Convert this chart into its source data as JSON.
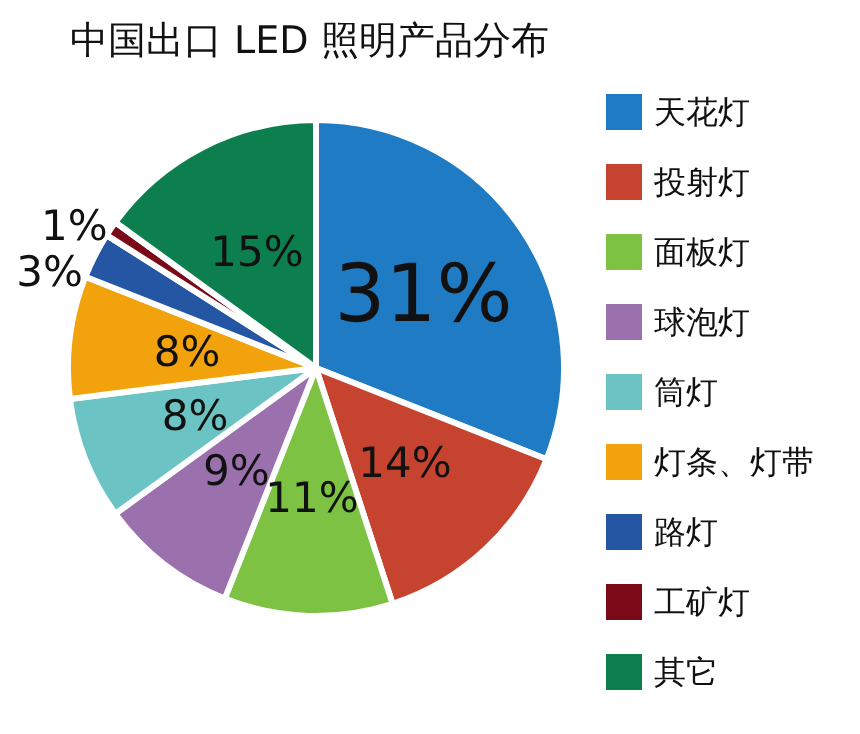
{
  "chart_data": {
    "type": "pie",
    "title": "中国出口 LED 照明产品分布",
    "categories": [
      "天花灯",
      "投射灯",
      "面板灯",
      "球泡灯",
      "筒灯",
      "灯条、灯带",
      "路灯",
      "工矿灯",
      "其它"
    ],
    "values": [
      31,
      14,
      11,
      9,
      8,
      8,
      3,
      1,
      15
    ],
    "value_labels": [
      "31%",
      "14%",
      "11%",
      "9%",
      "8%",
      "8%",
      "3%",
      "1%",
      "15%"
    ],
    "colors": [
      "#1f7bc4",
      "#c5432f",
      "#7dc242",
      "#9a70ad",
      "#6cc3c3",
      "#f2a20c",
      "#2456a4",
      "#7a0a18",
      "#0d7f4f"
    ],
    "legend": "right"
  }
}
